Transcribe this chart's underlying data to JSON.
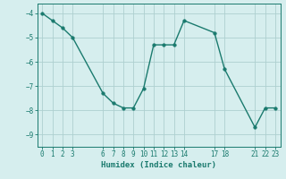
{
  "x": [
    0,
    1,
    2,
    3,
    6,
    7,
    8,
    9,
    10,
    11,
    12,
    13,
    14,
    17,
    18,
    21,
    22,
    23
  ],
  "y": [
    -4.0,
    -4.3,
    -4.6,
    -5.0,
    -7.3,
    -7.7,
    -7.9,
    -7.9,
    -7.1,
    -5.3,
    -5.3,
    -5.3,
    -4.3,
    -4.8,
    -6.3,
    -8.7,
    -7.9,
    -7.9
  ],
  "xlabel": "Humidex (Indice chaleur)",
  "ylabel": "",
  "xlim": [
    -0.5,
    23.5
  ],
  "ylim": [
    -9.5,
    -3.6
  ],
  "yticks": [
    -9,
    -8,
    -7,
    -6,
    -5,
    -4
  ],
  "xticks": [
    0,
    1,
    2,
    3,
    6,
    7,
    8,
    9,
    10,
    11,
    12,
    13,
    14,
    17,
    18,
    21,
    22,
    23
  ],
  "line_color": "#1a7a6e",
  "marker_color": "#1a7a6e",
  "bg_color": "#d6eeee",
  "grid_color": "#aed0d0"
}
